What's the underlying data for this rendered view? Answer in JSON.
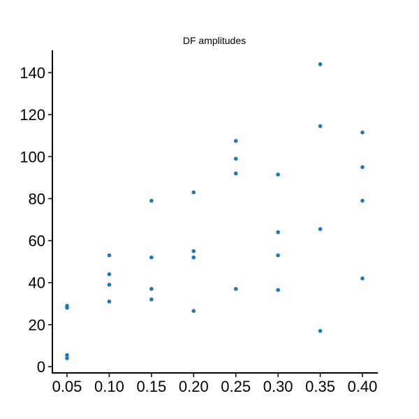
{
  "chart_data": {
    "type": "scatter",
    "title": "DF amplitudes",
    "xlabel": "",
    "ylabel": "",
    "xlim": [
      0.05,
      0.4
    ],
    "ylim": [
      0,
      150
    ],
    "x_ticks": [
      "0.05",
      "0.10",
      "0.15",
      "0.20",
      "0.25",
      "0.30",
      "0.35",
      "0.40"
    ],
    "y_ticks": [
      "0",
      "20",
      "40",
      "60",
      "80",
      "100",
      "120",
      "140"
    ],
    "grid": false,
    "marker_color": "#1f77b4",
    "series": [
      {
        "points": [
          {
            "x": 0.05,
            "y": 29
          },
          {
            "x": 0.05,
            "y": 28
          },
          {
            "x": 0.05,
            "y": 5.5
          },
          {
            "x": 0.05,
            "y": 4
          },
          {
            "x": 0.1,
            "y": 53
          },
          {
            "x": 0.1,
            "y": 44
          },
          {
            "x": 0.1,
            "y": 39
          },
          {
            "x": 0.1,
            "y": 31
          },
          {
            "x": 0.15,
            "y": 79
          },
          {
            "x": 0.15,
            "y": 52
          },
          {
            "x": 0.15,
            "y": 37
          },
          {
            "x": 0.15,
            "y": 32
          },
          {
            "x": 0.2,
            "y": 83
          },
          {
            "x": 0.2,
            "y": 55
          },
          {
            "x": 0.2,
            "y": 52
          },
          {
            "x": 0.2,
            "y": 26.5
          },
          {
            "x": 0.25,
            "y": 107.5
          },
          {
            "x": 0.25,
            "y": 99
          },
          {
            "x": 0.25,
            "y": 92
          },
          {
            "x": 0.25,
            "y": 37
          },
          {
            "x": 0.3,
            "y": 91.5
          },
          {
            "x": 0.3,
            "y": 64
          },
          {
            "x": 0.3,
            "y": 53
          },
          {
            "x": 0.3,
            "y": 36.5
          },
          {
            "x": 0.35,
            "y": 144
          },
          {
            "x": 0.35,
            "y": 114.5
          },
          {
            "x": 0.35,
            "y": 65.5
          },
          {
            "x": 0.35,
            "y": 17
          },
          {
            "x": 0.4,
            "y": 111.5
          },
          {
            "x": 0.4,
            "y": 95
          },
          {
            "x": 0.4,
            "y": 79
          },
          {
            "x": 0.4,
            "y": 42
          }
        ]
      }
    ]
  }
}
